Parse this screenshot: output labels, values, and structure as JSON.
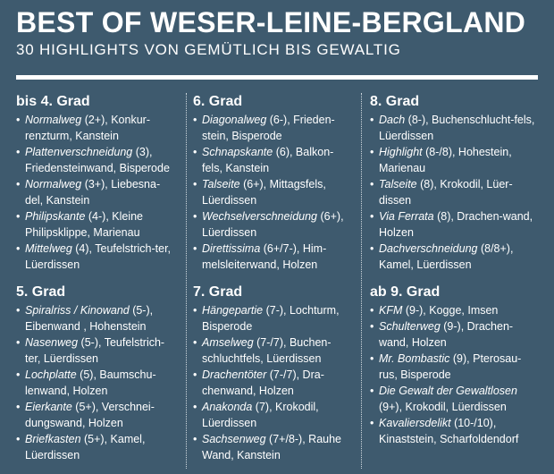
{
  "header": {
    "title": "BEST OF WESER-LEINE-BERGLAND",
    "subtitle": "30 HIGHLIGHTS VON GEMÜTLICH BIS GEWALTIG"
  },
  "bullet": "•",
  "columns": [
    {
      "sections": [
        {
          "grade": "bis 4. Grad",
          "routes": [
            {
              "name": "Normalweg",
              "detail": " (2+), Konkur-renzturm, Kanstein"
            },
            {
              "name": "Plattenverschneidung",
              "detail": " (3), Friedensteinwand, Bisperode"
            },
            {
              "name": "Normalweg",
              "detail": " (3+), Liebesna-del, Kanstein"
            },
            {
              "name": "Philipskante",
              "detail": " (4-), Kleine Philipsklippe, Marienau"
            },
            {
              "name": "Mittelweg",
              "detail": " (4), Teufelstrich-ter, Lüerdissen"
            }
          ]
        },
        {
          "grade": "5. Grad",
          "routes": [
            {
              "name": "Spiralriss / Kinowand",
              "detail": " (5-), Eibenwand , Hohenstein"
            },
            {
              "name": "Nasenweg",
              "detail": " (5-), Teufelstrich-ter, Lüerdissen"
            },
            {
              "name": "Lochplatte",
              "detail": " (5), Baumschu-lenwand, Holzen"
            },
            {
              "name": "Eierkante",
              "detail": " (5+), Verschnei-dungswand, Holzen"
            },
            {
              "name": "Briefkasten",
              "detail": " (5+), Kamel, Lüerdissen"
            }
          ]
        }
      ]
    },
    {
      "sections": [
        {
          "grade": "6. Grad",
          "routes": [
            {
              "name": "Diagonalweg",
              "detail": " (6-), Frieden-stein, Bisperode"
            },
            {
              "name": "Schnapskante",
              "detail": " (6), Balkon-fels, Kanstein"
            },
            {
              "name": "Talseite",
              "detail": " (6+), Mittagsfels, Lüerdissen"
            },
            {
              "name": "Wechselverschneidung",
              "detail": " (6+), Lüerdissen"
            },
            {
              "name": "Direttissima",
              "detail": " (6+/7-), Him-melsleiterwand, Holzen"
            }
          ]
        },
        {
          "grade": "7. Grad",
          "routes": [
            {
              "name": "Hängepartie",
              "detail": " (7-), Lochturm, Bisperode"
            },
            {
              "name": "Amselweg",
              "detail": " (7-/7), Buchen-schluchtfels, Lüerdissen"
            },
            {
              "name": "Drachentöter",
              "detail": " (7-/7), Dra-chenwand, Holzen"
            },
            {
              "name": "Anakonda",
              "detail": " (7), Krokodil, Lüerdissen"
            },
            {
              "name": "Sachsenweg",
              "detail": " (7+/8-), Rauhe Wand, Kanstein"
            }
          ]
        }
      ]
    },
    {
      "sections": [
        {
          "grade": "8. Grad",
          "routes": [
            {
              "name": "Dach",
              "detail": " (8-), Buchenschlucht-fels, Lüerdissen"
            },
            {
              "name": "Highlight",
              "detail": " (8-/8), Hohestein, Marienau"
            },
            {
              "name": "Talseite",
              "detail": " (8), Krokodil, Lüer-dissen"
            },
            {
              "name": "Via Ferrata",
              "detail": " (8), Drachen-wand, Holzen"
            },
            {
              "name": "Dachverschneidung",
              "detail": " (8/8+), Kamel, Lüerdissen"
            }
          ]
        },
        {
          "grade": "ab 9. Grad",
          "routes": [
            {
              "name": "KFM",
              "detail": " (9-), Kogge, Imsen"
            },
            {
              "name": "Schulterweg",
              "detail": " (9-), Drachen-wand, Holzen"
            },
            {
              "name": "Mr. Bombastic",
              "detail": " (9), Pterosau-rus, Bisperode"
            },
            {
              "name": "Die Gewalt der Gewaltlosen",
              "detail": " (9+), Krokodil, Lüerdissen"
            },
            {
              "name": "Kavaliersdelikt",
              "detail": " (10-/10), Kinaststein, Scharfoldendorf"
            }
          ]
        }
      ]
    }
  ]
}
